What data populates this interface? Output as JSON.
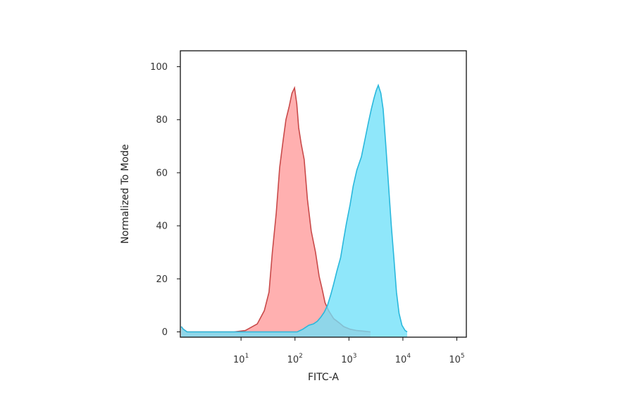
{
  "chart_data": {
    "type": "area",
    "title": "",
    "xlabel": "FITC-A",
    "ylabel": "Normalized To Mode",
    "x_scale": "log",
    "xlim": [
      0.75,
      150000
    ],
    "ylim": [
      -2,
      106
    ],
    "x_ticks": [
      {
        "value": 10,
        "base": "10",
        "exp": "1"
      },
      {
        "value": 100,
        "base": "10",
        "exp": "2"
      },
      {
        "value": 1000,
        "base": "10",
        "exp": "3"
      },
      {
        "value": 10000,
        "base": "10",
        "exp": "4"
      },
      {
        "value": 100000,
        "base": "10",
        "exp": "5"
      }
    ],
    "y_ticks": [
      {
        "value": 0,
        "label": "0"
      },
      {
        "value": 20,
        "label": "20"
      },
      {
        "value": 40,
        "label": "40"
      },
      {
        "value": 60,
        "label": "60"
      },
      {
        "value": 80,
        "label": "80"
      },
      {
        "value": 100,
        "label": "100"
      }
    ],
    "grid": false,
    "legend": "none",
    "series": [
      {
        "color_fill": "#ff9a9a",
        "color_line": "#c94a4a",
        "x": [
          0.78,
          0.85,
          1.0,
          7.4,
          12,
          20,
          27,
          33,
          38,
          45,
          52,
          60,
          68,
          78,
          88,
          98,
          108,
          117,
          130,
          148,
          170,
          200,
          240,
          280,
          320,
          360,
          420,
          520,
          650,
          800,
          1050,
          1400,
          2000,
          2500
        ],
        "y": [
          2,
          1,
          0,
          0,
          0.5,
          3,
          8,
          15,
          30,
          45,
          62,
          72,
          80,
          85,
          90,
          92,
          86,
          77,
          71,
          65,
          50,
          38,
          30,
          21,
          16,
          11,
          8,
          5,
          3.5,
          2,
          1,
          0.5,
          0.2,
          0
        ]
      },
      {
        "color_fill": "#70e0f8",
        "color_line": "#2ab8dc",
        "x": [
          0.78,
          0.85,
          1.0,
          110,
          140,
          180,
          220,
          260,
          300,
          350,
          400,
          460,
          520,
          600,
          700,
          800,
          900,
          1050,
          1200,
          1400,
          1700,
          2000,
          2300,
          2600,
          2900,
          3200,
          3500,
          3900,
          4300,
          4800,
          5400,
          6100,
          6800,
          7600,
          8500,
          9600,
          11000,
          12000
        ],
        "y": [
          2,
          1,
          0,
          0,
          1,
          2.5,
          3,
          4,
          5.5,
          7.5,
          10,
          14,
          18,
          23,
          28,
          35,
          41,
          48,
          55,
          61,
          66,
          73,
          79,
          84,
          88,
          91,
          93,
          90,
          84,
          71,
          56,
          40,
          28,
          15,
          7,
          2.5,
          0.5,
          0
        ]
      }
    ]
  }
}
